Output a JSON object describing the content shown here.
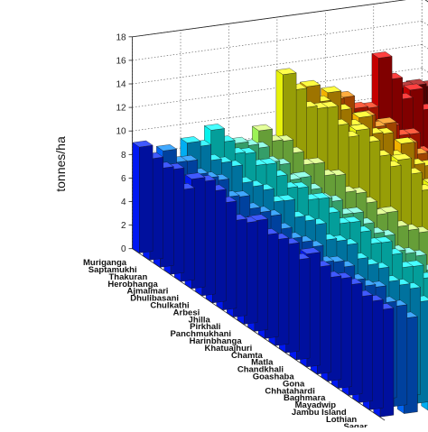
{
  "chart_data": {
    "type": "bar",
    "subtype": "3d-bar",
    "ylabel": "tonnes/ha",
    "xlabel": "",
    "title": "",
    "zlim": [
      0,
      18
    ],
    "z_ticks": [
      "0",
      "2",
      "4",
      "6",
      "8",
      "10",
      "12",
      "14",
      "16",
      "18"
    ],
    "grid": true,
    "categories": [
      "Muriganga",
      "Saptamukhi",
      "Thakuran",
      "Herobhanga",
      "Ajmalmari",
      "Dhulibasani",
      "Chulkathi",
      "Arbesi",
      "Jhilla",
      "Pirkhali",
      "Panchmukhani",
      "Harinbhanga",
      "Khatuajhuri",
      "Chamta",
      "Matla",
      "Chandkhali",
      "Goashaba",
      "Gona",
      "Chhatahardi",
      "Baghmara",
      "Mayadwip",
      "Jambu Island",
      "Lothian",
      "Sagar"
    ],
    "series_count": 12,
    "values": [
      [
        9.0,
        8.6,
        8.4,
        8.9,
        7.8,
        9.3,
        9.7,
        9.5,
        9.1,
        8.2,
        8.6,
        9.4,
        8.8,
        9.0,
        9.2,
        8.5,
        9.6,
        9.1,
        8.8,
        9.3,
        9.4,
        9.0,
        9.2,
        9.1
      ],
      [
        8.4,
        8.0,
        8.7,
        8.2,
        8.5,
        8.9,
        8.1,
        8.7,
        8.3,
        8.6,
        8.9,
        8.4,
        8.2,
        8.5,
        8.7,
        8.0,
        8.6,
        8.8,
        8.3,
        8.4,
        8.9,
        8.2,
        8.5,
        8.1
      ],
      [
        8.8,
        9.1,
        8.5,
        8.9,
        9.2,
        8.4,
        8.7,
        9.0,
        8.6,
        9.3,
        8.5,
        8.8,
        9.1,
        8.4,
        8.9,
        9.2,
        8.6,
        8.7,
        9.0,
        8.5,
        8.8,
        9.1,
        8.6,
        8.9
      ],
      [
        9.6,
        9.2,
        8.8,
        9.4,
        9.0,
        9.7,
        9.3,
        8.9,
        9.5,
        9.1,
        9.8,
        9.2,
        8.9,
        9.6,
        9.4,
        9.0,
        9.7,
        9.3,
        8.8,
        9.5,
        9.1,
        9.6,
        9.2,
        9.4
      ],
      [
        8.2,
        8.6,
        9.0,
        8.4,
        8.8,
        8.1,
        8.9,
        8.5,
        8.3,
        8.7,
        8.2,
        8.9,
        8.6,
        8.4,
        8.8,
        8.1,
        8.5,
        8.9,
        8.3,
        8.7,
        8.2,
        8.6,
        8.8,
        8.4
      ],
      [
        9.0,
        8.7,
        9.3,
        8.9,
        8.5,
        9.2,
        8.8,
        9.4,
        8.6,
        9.1,
        8.9,
        8.5,
        9.3,
        8.7,
        9.0,
        9.4,
        8.6,
        9.2,
        8.8,
        9.1,
        8.7,
        9.3,
        8.9,
        9.0
      ],
      [
        13.5,
        12.8,
        11.9,
        12.4,
        13.1,
        12.2,
        11.8,
        13.0,
        12.6,
        12.0,
        11.7,
        12.9,
        12.3,
        11.5,
        12.7,
        12.1,
        11.9,
        12.4,
        12.8,
        11.6,
        12.2,
        12.5,
        11.8,
        12.0
      ],
      [
        12.2,
        11.5,
        12.9,
        12.0,
        11.3,
        12.6,
        11.8,
        12.4,
        11.1,
        12.8,
        11.6,
        12.1,
        11.9,
        12.5,
        11.4,
        12.3,
        11.7,
        12.0,
        11.2,
        12.7,
        11.5,
        12.2,
        11.9,
        11.4
      ],
      [
        10.8,
        11.6,
        10.4,
        11.2,
        10.9,
        11.8,
        10.6,
        11.3,
        11.0,
        10.5,
        11.7,
        10.9,
        11.4,
        10.7,
        11.1,
        11.5,
        10.8,
        11.2,
        10.6,
        11.6,
        10.9,
        11.3,
        10.7,
        11.0
      ],
      [
        9.8,
        10.4,
        9.5,
        10.1,
        9.9,
        10.6,
        9.7,
        10.2,
        9.4,
        10.5,
        9.8,
        10.0,
        9.6,
        10.3,
        9.9,
        10.1,
        9.5,
        10.4,
        9.8,
        9.7,
        10.2,
        9.9,
        10.0,
        9.6
      ],
      [
        13.8,
        12.6,
        11.5,
        12.9,
        11.8,
        12.3,
        13.1,
        11.6,
        12.7,
        11.9,
        12.4,
        13.0,
        11.7,
        12.2,
        12.8,
        11.4,
        12.5,
        12.0,
        11.8,
        12.6,
        12.1,
        11.9,
        12.4,
        12.2
      ],
      [
        11.0,
        11.8,
        12.3,
        10.9,
        11.5,
        12.1,
        11.2,
        11.9,
        12.4,
        11.1,
        11.7,
        12.0,
        11.4,
        11.8,
        12.2,
        11.3,
        11.6,
        12.1,
        11.0,
        11.9,
        11.5,
        12.3,
        11.7,
        11.4
      ]
    ]
  }
}
